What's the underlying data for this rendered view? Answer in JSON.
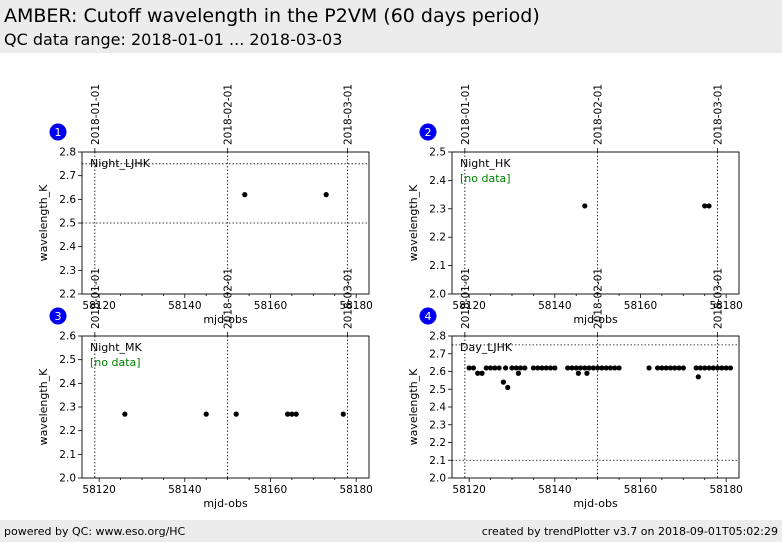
{
  "header": {
    "title": "AMBER: Cutoff wavelength in the P2VM (60 days period)",
    "subtitle": "QC data range: 2018-01-01 ... 2018-03-03"
  },
  "footer": {
    "left": "powered by QC: www.eso.org/HC",
    "right": "created by trendPlotter v3.7 on 2018-09-01T05:02:29"
  },
  "colors": {
    "marker": "#000000",
    "badge": "#0000ee",
    "no_data": "#008000",
    "header_bg": "#ececec"
  },
  "chart_data": [
    {
      "type": "scatter",
      "badge": "1",
      "label": "Night_LJHK",
      "note": "",
      "xlabel": "mjd-obs",
      "ylabel": "wavelength_K",
      "xlim": [
        58116,
        58183
      ],
      "ylim": [
        2.2,
        2.8
      ],
      "xticks": [
        58120,
        58140,
        58160,
        58180
      ],
      "yticks": [
        2.2,
        2.3,
        2.4,
        2.5,
        2.6,
        2.7,
        2.8
      ],
      "date_ticks": [
        {
          "label": "2018-01-01",
          "mjd": 58119
        },
        {
          "label": "2018-02-01",
          "mjd": 58150
        },
        {
          "label": "2018-03-01",
          "mjd": 58178
        }
      ],
      "ref_lines": [
        2.5,
        2.75
      ],
      "x": [
        58154,
        58173
      ],
      "y": [
        2.62,
        2.62
      ]
    },
    {
      "type": "scatter",
      "badge": "2",
      "label": "Night_HK",
      "note": "[no data]",
      "xlabel": "mjd-obs",
      "ylabel": "wavelength_K",
      "xlim": [
        58116,
        58183
      ],
      "ylim": [
        2.0,
        2.5
      ],
      "xticks": [
        58120,
        58140,
        58160,
        58180
      ],
      "yticks": [
        2.0,
        2.1,
        2.2,
        2.3,
        2.4,
        2.5
      ],
      "date_ticks": [
        {
          "label": "2018-01-01",
          "mjd": 58119
        },
        {
          "label": "2018-02-01",
          "mjd": 58150
        },
        {
          "label": "2018-03-01",
          "mjd": 58178
        }
      ],
      "ref_lines": [],
      "x": [
        58147,
        58175,
        58176
      ],
      "y": [
        2.31,
        2.31,
        2.31
      ]
    },
    {
      "type": "scatter",
      "badge": "3",
      "label": "Night_MK",
      "note": "[no data]",
      "xlabel": "mjd-obs",
      "ylabel": "wavelength_K",
      "xlim": [
        58116,
        58183
      ],
      "ylim": [
        2.0,
        2.6
      ],
      "xticks": [
        58120,
        58140,
        58160,
        58180
      ],
      "yticks": [
        2.0,
        2.1,
        2.2,
        2.3,
        2.4,
        2.5,
        2.6
      ],
      "date_ticks": [
        {
          "label": "2018-01-01",
          "mjd": 58119
        },
        {
          "label": "2018-02-01",
          "mjd": 58150
        },
        {
          "label": "2018-03-01",
          "mjd": 58178
        }
      ],
      "ref_lines": [],
      "x": [
        58126,
        58145,
        58152,
        58164,
        58165,
        58166,
        58177
      ],
      "y": [
        2.27,
        2.27,
        2.27,
        2.27,
        2.27,
        2.27,
        2.27
      ]
    },
    {
      "type": "scatter",
      "badge": "4",
      "label": "Day_LJHK",
      "note": "",
      "xlabel": "mjd-obs",
      "ylabel": "wavelength_K",
      "xlim": [
        58116,
        58183
      ],
      "ylim": [
        2.0,
        2.8
      ],
      "xticks": [
        58120,
        58140,
        58160,
        58180
      ],
      "yticks": [
        2.0,
        2.1,
        2.2,
        2.3,
        2.4,
        2.5,
        2.6,
        2.7,
        2.8
      ],
      "date_ticks": [
        {
          "label": "2018-01-01",
          "mjd": 58119
        },
        {
          "label": "2018-02-01",
          "mjd": 58150
        },
        {
          "label": "2018-03-01",
          "mjd": 58178
        }
      ],
      "ref_lines": [
        2.1,
        2.75
      ],
      "x": [
        58120,
        58121,
        58122,
        58123,
        58124,
        58125,
        58126,
        58127,
        58128,
        58128.5,
        58129,
        58130,
        58131,
        58131.5,
        58132,
        58133,
        58135,
        58136,
        58137,
        58138,
        58139,
        58140,
        58143,
        58144,
        58145,
        58145.5,
        58146,
        58147,
        58147.5,
        58148,
        58149,
        58150,
        58151,
        58152,
        58153,
        58154,
        58155,
        58162,
        58164,
        58165,
        58166,
        58167,
        58168,
        58169,
        58170,
        58173,
        58173.5,
        58174,
        58175,
        58176,
        58177,
        58178,
        58179,
        58180,
        58181
      ],
      "y": [
        2.62,
        2.62,
        2.59,
        2.59,
        2.62,
        2.62,
        2.62,
        2.62,
        2.54,
        2.62,
        2.51,
        2.62,
        2.62,
        2.59,
        2.62,
        2.62,
        2.62,
        2.62,
        2.62,
        2.62,
        2.62,
        2.62,
        2.62,
        2.62,
        2.62,
        2.59,
        2.62,
        2.62,
        2.59,
        2.62,
        2.62,
        2.62,
        2.62,
        2.62,
        2.62,
        2.62,
        2.62,
        2.62,
        2.62,
        2.62,
        2.62,
        2.62,
        2.62,
        2.62,
        2.62,
        2.62,
        2.57,
        2.62,
        2.62,
        2.62,
        2.62,
        2.62,
        2.62,
        2.62,
        2.62
      ]
    }
  ]
}
